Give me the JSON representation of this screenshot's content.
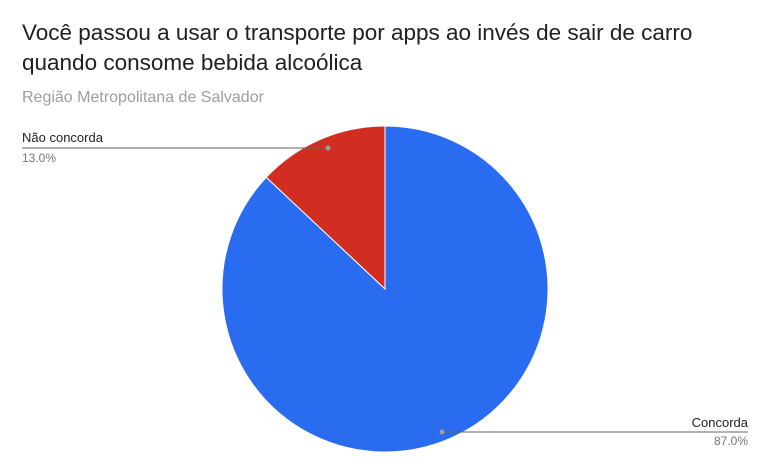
{
  "chart_data": {
    "type": "pie",
    "title": "Você passou a usar o transporte por apps ao invés de sair de carro quando consome bebida alcoólica",
    "subtitle": "Região Metropolitana de Salvador",
    "slices": [
      {
        "label": "Não concorda",
        "value": 13.0,
        "value_label": "13.0%",
        "color": "#d12d20"
      },
      {
        "label": "Concorda",
        "value": 87.0,
        "value_label": "87.0%",
        "color": "#2a6cf0"
      }
    ],
    "legend": "labeled"
  }
}
